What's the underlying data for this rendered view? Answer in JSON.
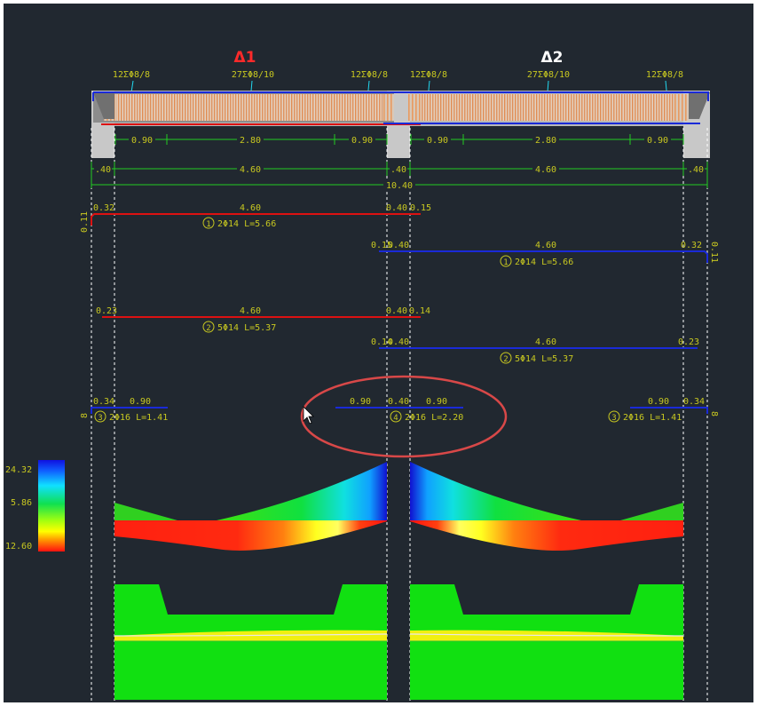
{
  "colors": {
    "background": "#212830",
    "span1_title": "#ff2a2a",
    "span2_title": "#ffffff",
    "dim_green": "#22cc22",
    "text_yellow": "#c8c820",
    "bottom_bar": "#dd1111",
    "top_bar": "#1a2ad8",
    "cyan_leader": "#22d8f0",
    "selection_ellipse": "#d84848"
  },
  "spans": [
    {
      "label": "Δ1",
      "stirrups": [
        "12ΣΦ8/8",
        "27ΣΦ8/10",
        "12ΣΦ8/8"
      ]
    },
    {
      "label": "Δ2",
      "stirrups": [
        "12ΣΦ8/8",
        "27ΣΦ8/10",
        "12ΣΦ8/8"
      ]
    }
  ],
  "stirrup_zone_dims": {
    "span1": [
      "0.90",
      "2.80",
      "0.90"
    ],
    "span2": [
      "0.90",
      "2.80",
      "0.90"
    ]
  },
  "support_dims": {
    "supports": [
      ".40",
      ".40",
      ".40"
    ],
    "spans": [
      "4.60",
      "4.60"
    ],
    "total": "10.40"
  },
  "bars": [
    {
      "id": "bar-1-span1",
      "num": "1",
      "desc": "2Φ14 L=5.66",
      "left": "0.32",
      "mid": "4.60",
      "right": "0.40",
      "ext": "0.15",
      "hook": "0.11"
    },
    {
      "id": "bar-1-span2",
      "num": "1",
      "desc": "2Φ14 L=5.66",
      "left": "0.15",
      "mid": "4.60",
      "right": "0.32",
      "ext": "0.40",
      "hook": "0.11"
    },
    {
      "id": "bar-2-span1",
      "num": "2",
      "desc": "5Φ14 L=5.37",
      "left": "0.23",
      "mid": "4.60",
      "right": "0.40",
      "ext": "0.14"
    },
    {
      "id": "bar-2-span2",
      "num": "2",
      "desc": "5Φ14 L=5.37",
      "left": "0.14",
      "mid": "4.60",
      "right": "0.23",
      "ext": "0.40"
    },
    {
      "id": "bar-3-left",
      "num": "3",
      "desc": "2Φ16 L=1.41",
      "a": "0.34",
      "b": "0.90",
      "hook": "8"
    },
    {
      "id": "bar-4-mid",
      "num": "4",
      "desc": "2Φ16 L=2.20",
      "a": "0.90",
      "b": "0.40",
      "c": "0.90"
    },
    {
      "id": "bar-3-right",
      "num": "3",
      "desc": "2Φ16 L=1.41",
      "a": "0.90",
      "b": "0.34",
      "hook": "8"
    }
  ],
  "legend": {
    "max": "24.32",
    "mid": "5.86",
    "min": "12.60"
  }
}
